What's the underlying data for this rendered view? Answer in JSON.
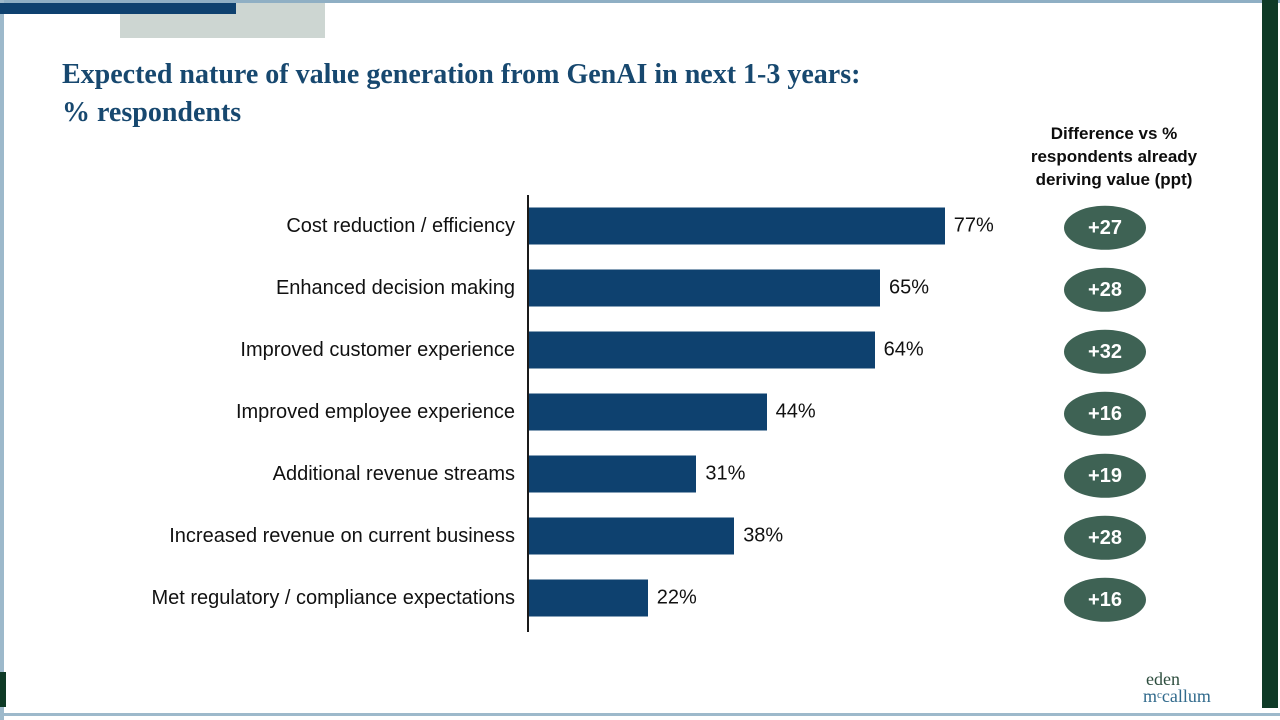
{
  "slide": {
    "title_lines": [
      "Expected nature of value generation from GenAI in next 1-3 years:",
      "% respondents"
    ],
    "right_column_header_lines": [
      "Difference vs %",
      "respondents already",
      "deriving value (ppt)"
    ]
  },
  "chart_data": {
    "type": "bar",
    "orientation": "horizontal",
    "title": "Expected nature of value generation from GenAI in next 1-3 years: % respondents",
    "categories": [
      "Cost reduction / efficiency",
      "Enhanced decision making",
      "Improved customer experience",
      "Improved employee experience",
      "Additional revenue streams",
      "Increased revenue on current business",
      "Met regulatory / compliance expectations"
    ],
    "values": [
      77,
      65,
      64,
      44,
      31,
      38,
      22
    ],
    "value_labels": [
      "77%",
      "65%",
      "64%",
      "44%",
      "31%",
      "38%",
      "22%"
    ],
    "diff_vs_already_deriving_ppt": [
      27,
      28,
      32,
      16,
      19,
      28,
      16
    ],
    "badge_labels": [
      "+27",
      "+28",
      "+32",
      "+16",
      "+19",
      "+28",
      "+16"
    ],
    "xlim": [
      0,
      100
    ],
    "grid": false,
    "bar_color": "#0e416f",
    "badge_color": "#3e6254"
  },
  "logo": {
    "line1": "eden",
    "line2_m": "m",
    "line2_sup": "c",
    "line2_rest": "callum"
  },
  "colors": {
    "accent_navy": "#0e416f",
    "title_navy": "#17486f",
    "steel_blue_line": "#8fafc4",
    "pale_green_block": "#cdd6d2",
    "dark_green_strip": "#0e3a26",
    "badge_green": "#3e6254",
    "logo_green": "#2d4d3e",
    "logo_blue": "#316a8c"
  }
}
